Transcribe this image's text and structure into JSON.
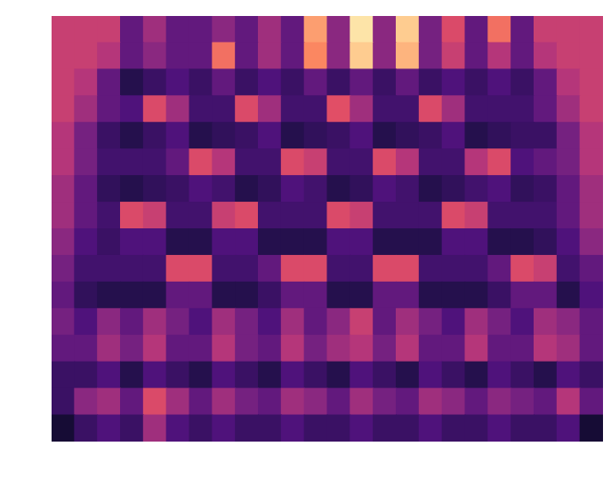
{
  "chart_data": {
    "type": "heatmap",
    "tick_labels": false,
    "zlim": [
      0,
      1
    ],
    "cells": [
      [
        0.55,
        0.55,
        0.55,
        0.3,
        0.45,
        0.3,
        0.3,
        0.4,
        0.3,
        0.45,
        0.3,
        0.8,
        0.4,
        0.95,
        0.4,
        0.9,
        0.35,
        0.6,
        0.3,
        0.7,
        0.3,
        0.55,
        0.55,
        0.55
      ],
      [
        0.55,
        0.55,
        0.5,
        0.3,
        0.4,
        0.3,
        0.3,
        0.7,
        0.3,
        0.45,
        0.3,
        0.75,
        0.4,
        0.9,
        0.4,
        0.85,
        0.35,
        0.55,
        0.3,
        0.5,
        0.3,
        0.5,
        0.55,
        0.55
      ],
      [
        0.55,
        0.5,
        0.3,
        0.15,
        0.2,
        0.25,
        0.2,
        0.3,
        0.2,
        0.25,
        0.2,
        0.3,
        0.2,
        0.3,
        0.2,
        0.3,
        0.2,
        0.25,
        0.2,
        0.25,
        0.2,
        0.3,
        0.5,
        0.55
      ],
      [
        0.55,
        0.45,
        0.3,
        0.25,
        0.6,
        0.45,
        0.22,
        0.22,
        0.6,
        0.45,
        0.22,
        0.22,
        0.62,
        0.45,
        0.22,
        0.22,
        0.6,
        0.45,
        0.22,
        0.22,
        0.22,
        0.3,
        0.45,
        0.55
      ],
      [
        0.5,
        0.35,
        0.2,
        0.15,
        0.2,
        0.25,
        0.15,
        0.18,
        0.2,
        0.25,
        0.15,
        0.18,
        0.2,
        0.25,
        0.15,
        0.18,
        0.2,
        0.25,
        0.15,
        0.18,
        0.2,
        0.2,
        0.35,
        0.5
      ],
      [
        0.5,
        0.35,
        0.22,
        0.22,
        0.22,
        0.3,
        0.6,
        0.5,
        0.22,
        0.22,
        0.6,
        0.55,
        0.22,
        0.22,
        0.6,
        0.5,
        0.22,
        0.22,
        0.5,
        0.6,
        0.25,
        0.3,
        0.35,
        0.5
      ],
      [
        0.45,
        0.3,
        0.18,
        0.15,
        0.18,
        0.2,
        0.25,
        0.22,
        0.15,
        0.18,
        0.25,
        0.22,
        0.15,
        0.18,
        0.25,
        0.22,
        0.15,
        0.18,
        0.22,
        0.25,
        0.18,
        0.2,
        0.3,
        0.45
      ],
      [
        0.45,
        0.3,
        0.22,
        0.6,
        0.55,
        0.22,
        0.22,
        0.55,
        0.6,
        0.22,
        0.22,
        0.22,
        0.6,
        0.55,
        0.22,
        0.22,
        0.22,
        0.6,
        0.55,
        0.22,
        0.22,
        0.22,
        0.3,
        0.45
      ],
      [
        0.4,
        0.25,
        0.2,
        0.25,
        0.25,
        0.15,
        0.15,
        0.25,
        0.25,
        0.15,
        0.15,
        0.15,
        0.25,
        0.25,
        0.15,
        0.15,
        0.15,
        0.25,
        0.25,
        0.15,
        0.15,
        0.18,
        0.25,
        0.4
      ],
      [
        0.35,
        0.22,
        0.22,
        0.22,
        0.22,
        0.6,
        0.6,
        0.22,
        0.22,
        0.3,
        0.6,
        0.6,
        0.22,
        0.22,
        0.6,
        0.6,
        0.22,
        0.22,
        0.22,
        0.3,
        0.6,
        0.55,
        0.22,
        0.3
      ],
      [
        0.3,
        0.18,
        0.15,
        0.15,
        0.15,
        0.3,
        0.3,
        0.15,
        0.15,
        0.2,
        0.3,
        0.3,
        0.15,
        0.15,
        0.3,
        0.3,
        0.15,
        0.15,
        0.15,
        0.2,
        0.3,
        0.3,
        0.15,
        0.25
      ],
      [
        0.35,
        0.25,
        0.4,
        0.3,
        0.45,
        0.35,
        0.25,
        0.45,
        0.35,
        0.25,
        0.45,
        0.3,
        0.4,
        0.55,
        0.3,
        0.45,
        0.35,
        0.25,
        0.45,
        0.35,
        0.25,
        0.45,
        0.4,
        0.3
      ],
      [
        0.3,
        0.3,
        0.45,
        0.35,
        0.5,
        0.3,
        0.3,
        0.5,
        0.35,
        0.3,
        0.5,
        0.35,
        0.45,
        0.5,
        0.35,
        0.5,
        0.3,
        0.3,
        0.5,
        0.3,
        0.3,
        0.5,
        0.45,
        0.3
      ],
      [
        0.2,
        0.2,
        0.25,
        0.15,
        0.25,
        0.2,
        0.15,
        0.25,
        0.2,
        0.15,
        0.25,
        0.2,
        0.15,
        0.25,
        0.2,
        0.15,
        0.25,
        0.2,
        0.15,
        0.25,
        0.2,
        0.15,
        0.25,
        0.2
      ],
      [
        0.2,
        0.4,
        0.45,
        0.3,
        0.6,
        0.45,
        0.3,
        0.45,
        0.35,
        0.3,
        0.45,
        0.4,
        0.3,
        0.45,
        0.35,
        0.3,
        0.45,
        0.4,
        0.3,
        0.4,
        0.35,
        0.3,
        0.5,
        0.3
      ],
      [
        0.1,
        0.2,
        0.25,
        0.2,
        0.45,
        0.25,
        0.2,
        0.25,
        0.2,
        0.2,
        0.25,
        0.2,
        0.2,
        0.25,
        0.2,
        0.2,
        0.25,
        0.2,
        0.2,
        0.25,
        0.2,
        0.2,
        0.25,
        0.1
      ]
    ]
  }
}
